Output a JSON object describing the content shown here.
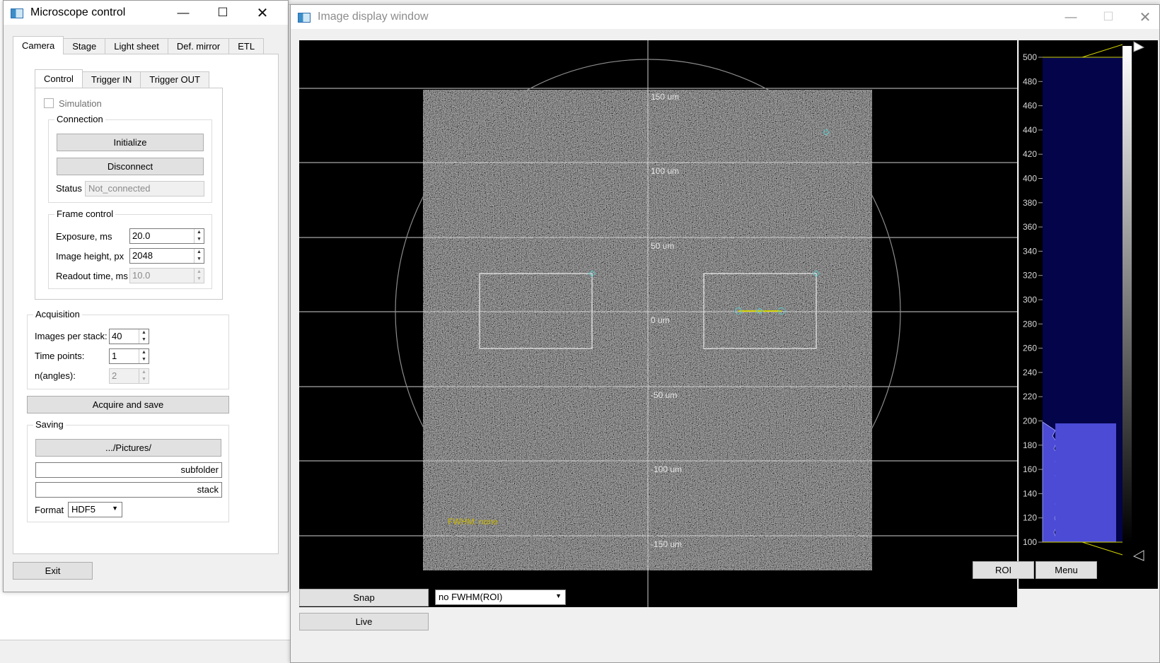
{
  "control_window": {
    "title": "Microscope control",
    "main_tabs": [
      "Camera",
      "Stage",
      "Light sheet",
      "Def. mirror",
      "ETL"
    ],
    "sub_tabs": [
      "Control",
      "Trigger IN",
      "Trigger OUT"
    ],
    "simulation_label": "Simulation",
    "connection": {
      "title": "Connection",
      "initialize_label": "Initialize",
      "disconnect_label": "Disconnect",
      "status_label": "Status",
      "status_value": "Not_connected"
    },
    "frame_control": {
      "title": "Frame control",
      "exposure_label": "Exposure, ms",
      "exposure_value": "20.0",
      "height_label": "Image height, px",
      "height_value": "2048",
      "readout_label": "Readout time, ms",
      "readout_value": "10.0"
    },
    "acquisition": {
      "title": "Acquisition",
      "images_label": "Images per stack:",
      "images_value": "40",
      "time_label": "Time points:",
      "time_value": "1",
      "angles_label": "n(angles):",
      "angles_value": "2",
      "acquire_label": "Acquire and save"
    },
    "saving": {
      "title": "Saving",
      "path_label": ".../Pictures/",
      "subfolder_value": "subfolder",
      "stack_value": "stack",
      "format_label": "Format",
      "format_value": "HDF5"
    },
    "exit_label": "Exit"
  },
  "display_window": {
    "title": "Image display window",
    "y_axis_labels": [
      "150 um",
      "100 um",
      "50 um",
      "0 um",
      "-50 um",
      "-100 um",
      "-150 um"
    ],
    "fwhm_text": "FWHM: none",
    "hist_ticks": [
      "500",
      "480",
      "460",
      "440",
      "420",
      "400",
      "380",
      "360",
      "340",
      "320",
      "300",
      "280",
      "260",
      "240",
      "220",
      "200",
      "180",
      "160",
      "140",
      "120",
      "100"
    ],
    "roi_label": "ROI",
    "menu_label": "Menu",
    "snap_label": "Snap",
    "live_label": "Live",
    "fwhm_select_value": "no FWHM(ROI)"
  },
  "colors": {
    "histogram_bg": "#04044a",
    "histogram_fill": "#4b4bd6",
    "fwhm_text": "#c8b400",
    "roi_line": "#d2d200",
    "handle": "#5fc8c8"
  },
  "icons": [
    "app-icon",
    "minimize-icon",
    "maximize-icon",
    "close-icon",
    "chevron-down-icon",
    "spin-up-icon",
    "spin-down-icon"
  ]
}
